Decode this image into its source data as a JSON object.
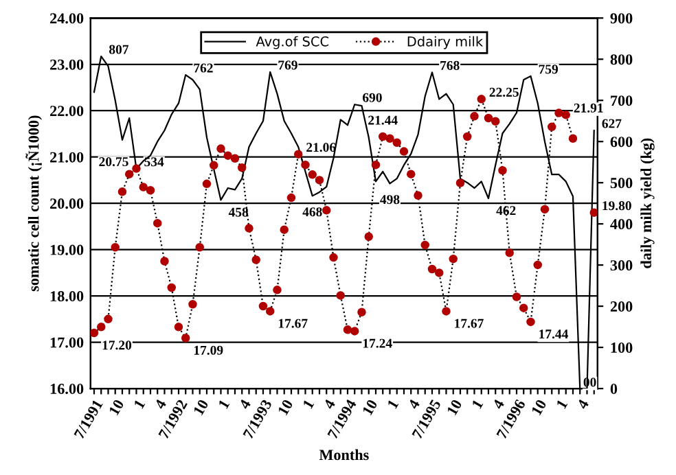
{
  "chart_data": {
    "type": "line",
    "categories": [
      "7/1991",
      null,
      null,
      "10",
      null,
      null,
      "1",
      null,
      null,
      "4",
      null,
      null,
      "7/1992",
      null,
      null,
      "10",
      null,
      null,
      "1",
      null,
      null,
      "4",
      null,
      null,
      "7/1993",
      null,
      null,
      "10",
      null,
      null,
      "1",
      null,
      null,
      "4",
      null,
      null,
      "7/1994",
      null,
      null,
      "10",
      null,
      null,
      "1",
      null,
      null,
      "4",
      null,
      null,
      "7/1995",
      null,
      null,
      "10",
      null,
      null,
      "1",
      null,
      null,
      "4",
      null,
      null,
      "7/1996",
      null,
      null,
      "10",
      null,
      null,
      "1",
      null,
      null,
      "4",
      null,
      null
    ],
    "xlabel": "Months",
    "ylabel": "somatic cell count (¡Ñ1000)",
    "y2label": "daily milk yield (kg)",
    "ylim": [
      16,
      24
    ],
    "yticks": [
      {
        "value": 16,
        "label": "16.00"
      },
      {
        "value": 17,
        "label": "17.00"
      },
      {
        "value": 18,
        "label": "18.00"
      },
      {
        "value": 19,
        "label": "19.00"
      },
      {
        "value": 20,
        "label": "20.00"
      },
      {
        "value": 21,
        "label": "21.00"
      },
      {
        "value": 22,
        "label": "22.00"
      },
      {
        "value": 23,
        "label": "23.00"
      },
      {
        "value": 24,
        "label": "24.00"
      }
    ],
    "y2lim": [
      0,
      900
    ],
    "y2ticks": [
      0,
      100,
      200,
      300,
      400,
      500,
      600,
      700,
      800,
      900
    ],
    "grid": "y",
    "legend": "top",
    "annotations": [
      "00"
    ],
    "series": [
      {
        "name": "Avg.of SCC",
        "axis": "y2",
        "color": "#000000",
        "marker": "none",
        "line_style": "solid",
        "values": [
          720,
          807,
          783,
          700,
          604,
          657,
          534,
          553,
          566,
          600,
          627,
          666,
          693,
          762,
          750,
          727,
          610,
          533,
          458,
          487,
          483,
          510,
          587,
          620,
          650,
          769,
          716,
          650,
          620,
          587,
          527,
          468,
          477,
          490,
          560,
          653,
          640,
          690,
          687,
          610,
          503,
          527,
          498,
          510,
          543,
          570,
          617,
          710,
          768,
          703,
          716,
          690,
          510,
          500,
          487,
          503,
          462,
          543,
          620,
          643,
          670,
          750,
          759,
          693,
          600,
          520,
          520,
          503,
          467,
          0,
          0,
          627
        ],
        "value_labels": [
          null,
          "807",
          null,
          null,
          null,
          null,
          "534",
          null,
          null,
          null,
          null,
          null,
          null,
          "762",
          null,
          null,
          null,
          null,
          "458",
          null,
          null,
          null,
          null,
          null,
          null,
          "769",
          null,
          null,
          null,
          null,
          null,
          "468",
          null,
          null,
          null,
          null,
          null,
          "690",
          null,
          null,
          null,
          null,
          "498",
          null,
          null,
          null,
          null,
          null,
          "768",
          null,
          null,
          null,
          null,
          null,
          null,
          null,
          "462",
          null,
          null,
          null,
          null,
          null,
          "759",
          null,
          null,
          null,
          null,
          null,
          null,
          null,
          null,
          "627"
        ]
      },
      {
        "name": "Ddairy milk",
        "color": "#b00000",
        "marker": "circle",
        "line_style": "dotted",
        "values": [
          17.2,
          17.33,
          17.5,
          19.05,
          20.25,
          20.63,
          20.75,
          20.35,
          20.28,
          19.57,
          18.75,
          18.18,
          17.33,
          17.09,
          17.82,
          19.05,
          20.42,
          20.82,
          21.18,
          21.03,
          20.97,
          20.77,
          19.46,
          18.78,
          17.78,
          17.67,
          18.13,
          19.43,
          20.12,
          21.06,
          20.83,
          20.62,
          20.5,
          19.85,
          18.83,
          18.01,
          17.27,
          17.24,
          17.65,
          19.28,
          20.83,
          21.44,
          21.4,
          21.31,
          21.12,
          20.63,
          20.17,
          19.1,
          18.58,
          18.5,
          17.67,
          18.8,
          20.44,
          21.44,
          21.88,
          22.25,
          21.84,
          21.77,
          20.71,
          18.93,
          17.98,
          17.74,
          17.44,
          18.67,
          19.87,
          21.65,
          21.95,
          21.91,
          21.4,
          null,
          null,
          19.8
        ],
        "value_labels": [
          "17.20",
          null,
          null,
          null,
          null,
          null,
          "20.75",
          null,
          null,
          null,
          null,
          null,
          null,
          "17.09",
          null,
          null,
          null,
          null,
          null,
          null,
          null,
          null,
          null,
          null,
          null,
          "17.67",
          null,
          null,
          null,
          "21.06",
          null,
          null,
          null,
          null,
          null,
          null,
          null,
          "17.24",
          null,
          null,
          null,
          "21.44",
          null,
          null,
          null,
          null,
          null,
          null,
          null,
          null,
          "17.67",
          null,
          null,
          null,
          null,
          "22.25",
          null,
          null,
          null,
          null,
          null,
          null,
          "17.44",
          null,
          null,
          null,
          null,
          "21.91",
          null,
          null,
          null,
          "19.80"
        ]
      }
    ]
  }
}
